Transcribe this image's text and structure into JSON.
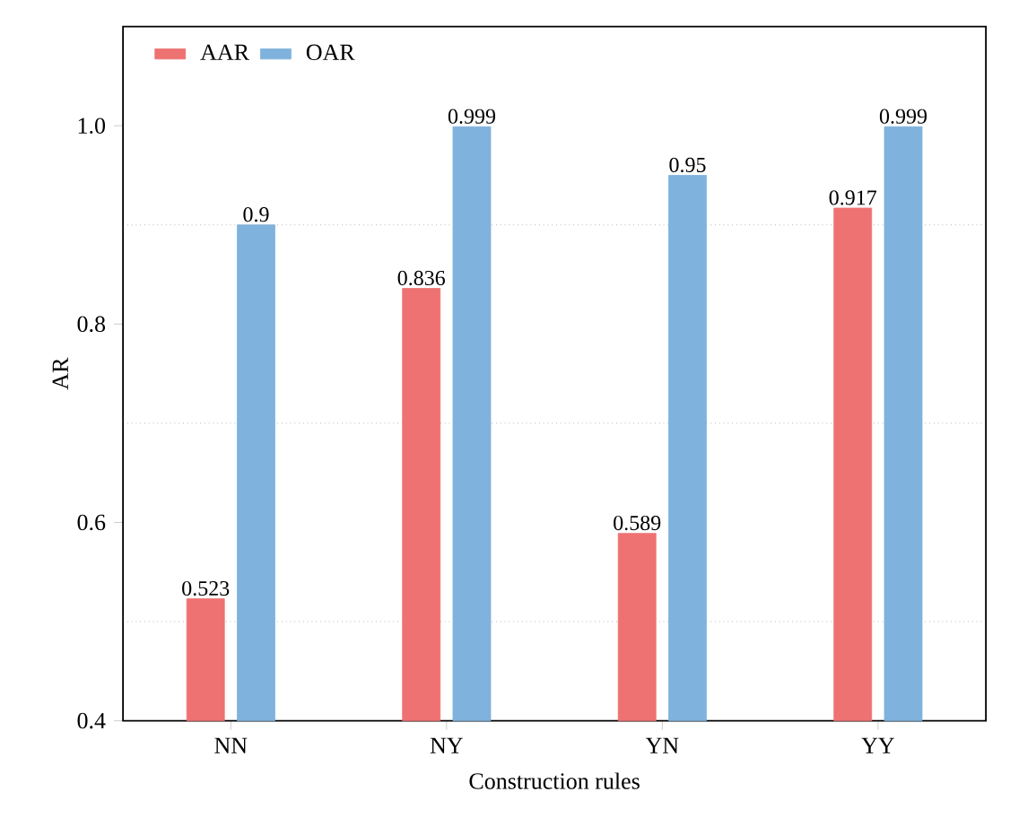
{
  "chart_data": {
    "type": "bar",
    "xlabel": "Construction rules",
    "ylabel": "AR",
    "categories": [
      "NN",
      "NY",
      "YN",
      "YY"
    ],
    "series": [
      {
        "name": "AAR",
        "color": "#ee7272",
        "values": [
          0.523,
          0.836,
          0.589,
          0.917
        ]
      },
      {
        "name": "OAR",
        "color": "#7fb2dc",
        "values": [
          0.9,
          0.999,
          0.95,
          0.999
        ]
      }
    ],
    "ylim": [
      0.4,
      1.1
    ],
    "yticks": [
      0.4,
      0.6,
      0.8,
      {
        "value": 1.0,
        "label": "1.0"
      }
    ],
    "grid": "y",
    "legend": "top left",
    "data_labels": true
  }
}
